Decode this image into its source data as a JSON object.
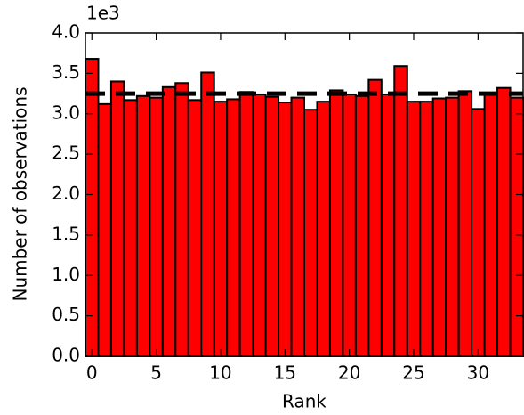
{
  "chart_data": {
    "type": "histogram",
    "xlabel": "Rank",
    "ylabel": "Number of observations",
    "y_offset_label": "1e3",
    "bins": [
      -0.5,
      0.5,
      1.5,
      2.5,
      3.5,
      4.5,
      5.5,
      6.5,
      7.5,
      8.5,
      9.5,
      10.5,
      11.5,
      12.5,
      13.5,
      14.5,
      15.5,
      16.5,
      17.5,
      18.5,
      19.5,
      20.5,
      21.5,
      22.5,
      23.5,
      24.5,
      25.5,
      26.5,
      27.5,
      28.5,
      29.5,
      30.5,
      31.5,
      32.5,
      33.5
    ],
    "counts": [
      3.68,
      3.12,
      3.4,
      3.17,
      3.22,
      3.2,
      3.33,
      3.38,
      3.17,
      3.51,
      3.15,
      3.18,
      3.27,
      3.24,
      3.21,
      3.14,
      3.2,
      3.05,
      3.15,
      3.29,
      3.24,
      3.22,
      3.42,
      3.24,
      3.59,
      3.15,
      3.15,
      3.19,
      3.2,
      3.28,
      3.06,
      3.26,
      3.32,
      3.2
    ],
    "color": "#ff0000",
    "edge_color": "#000000",
    "reference_line": 3.25,
    "xlim": [
      -0.5,
      33.5
    ],
    "xticks": [
      0,
      5,
      10,
      15,
      20,
      25,
      30
    ],
    "ylim": [
      0,
      4
    ],
    "yticks": [
      {
        "value": 0,
        "label": "0.0"
      },
      {
        "value": 0.5,
        "label": "0.5"
      },
      {
        "value": 1,
        "label": "1.0"
      },
      {
        "value": 1.5,
        "label": "1.5"
      },
      {
        "value": 2,
        "label": "2.0"
      },
      {
        "value": 2.5,
        "label": "2.5"
      },
      {
        "value": 3,
        "label": "3.0"
      },
      {
        "value": 3.5,
        "label": "3.5"
      },
      {
        "value": 4,
        "label": "4.0"
      }
    ]
  }
}
